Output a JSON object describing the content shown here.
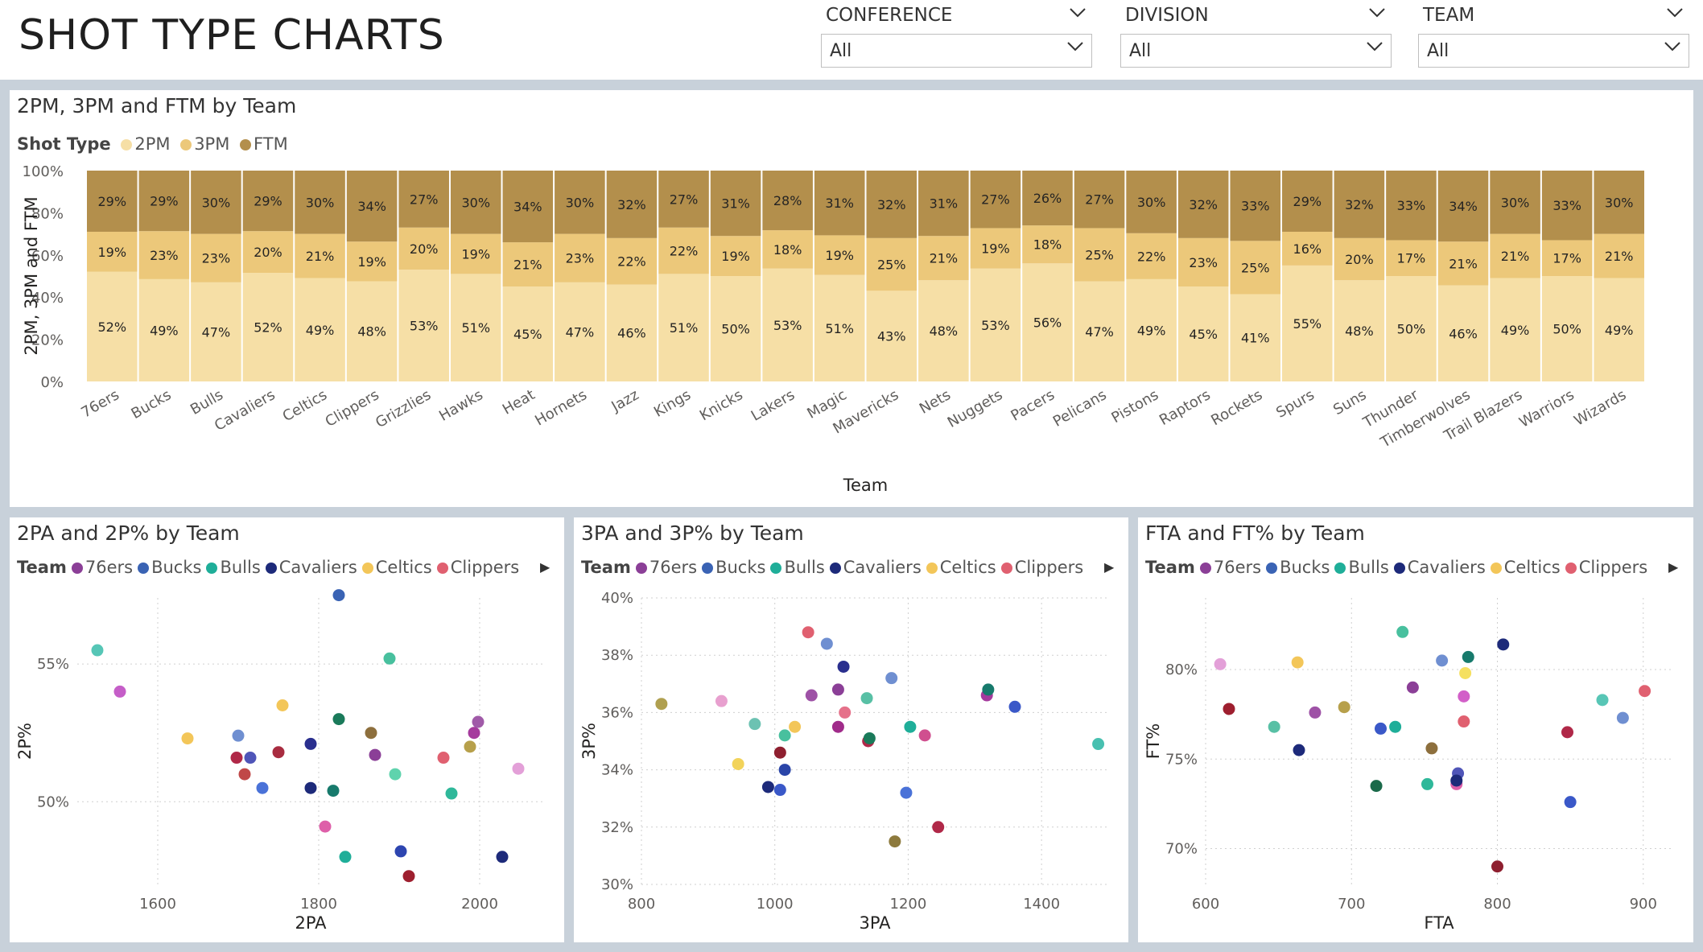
{
  "header": {
    "title": "SHOT TYPE CHARTS"
  },
  "slicers": [
    {
      "label": "CONFERENCE",
      "value": "All"
    },
    {
      "label": "DIVISION",
      "value": "All"
    },
    {
      "label": "TEAM",
      "value": "All"
    }
  ],
  "colors": {
    "p2": "#f6dfa6",
    "p3": "#ecc87a",
    "ftm": "#b38f4c",
    "axis_text": "#605e5c",
    "grid": "#cfcfcf"
  },
  "bar_chart": {
    "title": "2PM, 3PM and FTM by Team",
    "legend_title": "Shot Type",
    "legend_items": [
      "2PM",
      "3PM",
      "FTM"
    ]
  },
  "scatter_legend": {
    "title": "Team",
    "items": [
      {
        "name": "76ers",
        "color": "#8b3f97"
      },
      {
        "name": "Bucks",
        "color": "#3a63b4"
      },
      {
        "name": "Bulls",
        "color": "#1fae99"
      },
      {
        "name": "Cavaliers",
        "color": "#1d2a7a"
      },
      {
        "name": "Celtics",
        "color": "#f3c659"
      },
      {
        "name": "Clippers",
        "color": "#e06070"
      }
    ],
    "more_icon": "right-arrow-icon"
  },
  "chart_data": [
    {
      "type": "bar",
      "stacked": "100%",
      "title": "2PM, 3PM and FTM by Team",
      "xlabel": "Team",
      "ylabel": "2PM, 3PM and FTM",
      "yticks": [
        "0%",
        "20%",
        "40%",
        "60%",
        "80%",
        "100%"
      ],
      "categories": [
        "76ers",
        "Bucks",
        "Bulls",
        "Cavaliers",
        "Celtics",
        "Clippers",
        "Grizzlies",
        "Hawks",
        "Heat",
        "Hornets",
        "Jazz",
        "Kings",
        "Knicks",
        "Lakers",
        "Magic",
        "Mavericks",
        "Nets",
        "Nuggets",
        "Pacers",
        "Pelicans",
        "Pistons",
        "Raptors",
        "Rockets",
        "Spurs",
        "Suns",
        "Thunder",
        "Timberwolves",
        "Trail Blazers",
        "Warriors",
        "Wizards"
      ],
      "series": [
        {
          "name": "2PM",
          "values": [
            52,
            49,
            47,
            52,
            49,
            48,
            53,
            51,
            45,
            47,
            46,
            51,
            50,
            53,
            51,
            43,
            48,
            53,
            56,
            47,
            49,
            45,
            41,
            55,
            48,
            50,
            46,
            49,
            50,
            49
          ]
        },
        {
          "name": "3PM",
          "values": [
            19,
            23,
            23,
            20,
            21,
            19,
            20,
            19,
            21,
            23,
            22,
            22,
            19,
            18,
            19,
            25,
            21,
            19,
            18,
            25,
            22,
            23,
            25,
            16,
            20,
            17,
            21,
            21,
            17,
            21
          ]
        },
        {
          "name": "FTM",
          "values": [
            29,
            29,
            30,
            29,
            30,
            34,
            27,
            30,
            34,
            30,
            32,
            27,
            31,
            28,
            31,
            32,
            31,
            27,
            26,
            27,
            30,
            32,
            33,
            29,
            32,
            33,
            34,
            30,
            33,
            30
          ]
        }
      ],
      "legend": "top-left"
    },
    {
      "type": "scatter",
      "title": "2PA and 2P% by Team",
      "xlabel": "2PA",
      "ylabel": "2P%",
      "xlim": [
        1500,
        2080
      ],
      "ylim": [
        47.0,
        57.4
      ],
      "xticks": [
        "1600",
        "1800",
        "2000"
      ],
      "yticks": [
        "50%",
        "55%"
      ],
      "points": [
        {
          "x": 1525,
          "y": 55.5,
          "c": "#56c6b6"
        },
        {
          "x": 1553,
          "y": 54.0,
          "c": "#c55ec8"
        },
        {
          "x": 1825,
          "y": 57.5,
          "c": "#3a63b4"
        },
        {
          "x": 1637,
          "y": 52.3,
          "c": "#f3c659"
        },
        {
          "x": 1755,
          "y": 53.5,
          "c": "#f3c659"
        },
        {
          "x": 1700,
          "y": 52.4,
          "c": "#6f8fd1"
        },
        {
          "x": 1698,
          "y": 51.6,
          "c": "#b02848"
        },
        {
          "x": 1715,
          "y": 51.6,
          "c": "#4f55b8"
        },
        {
          "x": 1750,
          "y": 51.8,
          "c": "#a82c40"
        },
        {
          "x": 1708,
          "y": 51.0,
          "c": "#c04848"
        },
        {
          "x": 1730,
          "y": 50.5,
          "c": "#4a72d8"
        },
        {
          "x": 1790,
          "y": 52.1,
          "c": "#2a2f8e"
        },
        {
          "x": 1825,
          "y": 53.0,
          "c": "#1a7a5a"
        },
        {
          "x": 1888,
          "y": 55.2,
          "c": "#48c09e"
        },
        {
          "x": 1865,
          "y": 52.5,
          "c": "#8d6f3d"
        },
        {
          "x": 1870,
          "y": 51.7,
          "c": "#8b3f97"
        },
        {
          "x": 1790,
          "y": 50.5,
          "c": "#1d2a7a"
        },
        {
          "x": 1818,
          "y": 50.4,
          "c": "#177a6c"
        },
        {
          "x": 1895,
          "y": 51.0,
          "c": "#5fd3ad"
        },
        {
          "x": 1808,
          "y": 49.1,
          "c": "#de5fa9"
        },
        {
          "x": 1833,
          "y": 48.0,
          "c": "#1fae99"
        },
        {
          "x": 1902,
          "y": 48.2,
          "c": "#2d45b0"
        },
        {
          "x": 1912,
          "y": 47.3,
          "c": "#9e1f2f"
        },
        {
          "x": 1955,
          "y": 51.6,
          "c": "#e06070"
        },
        {
          "x": 1965,
          "y": 50.3,
          "c": "#2fb89a"
        },
        {
          "x": 1988,
          "y": 52.0,
          "c": "#b7a04b"
        },
        {
          "x": 1993,
          "y": 52.5,
          "c": "#a53a9d"
        },
        {
          "x": 1998,
          "y": 52.9,
          "c": "#a05aa8"
        },
        {
          "x": 2028,
          "y": 48.0,
          "c": "#1d2a7a"
        },
        {
          "x": 2048,
          "y": 51.2,
          "c": "#e3a0d8"
        }
      ]
    },
    {
      "type": "scatter",
      "title": "3PA and 3P% by Team",
      "xlabel": "3PA",
      "ylabel": "3P%",
      "xlim": [
        800,
        1500
      ],
      "ylim": [
        30,
        40
      ],
      "xticks": [
        "800",
        "1000",
        "1200",
        "1400"
      ],
      "yticks": [
        "30%",
        "32%",
        "34%",
        "36%",
        "38%",
        "40%"
      ],
      "points": [
        {
          "x": 830,
          "y": 36.3,
          "c": "#b0a050"
        },
        {
          "x": 920,
          "y": 36.4,
          "c": "#e8a0cf"
        },
        {
          "x": 945,
          "y": 34.2,
          "c": "#f2d35a"
        },
        {
          "x": 970,
          "y": 35.6,
          "c": "#6cc2b2"
        },
        {
          "x": 990,
          "y": 33.4,
          "c": "#1d2a7a"
        },
        {
          "x": 1008,
          "y": 33.3,
          "c": "#3a58c8"
        },
        {
          "x": 1008,
          "y": 34.6,
          "c": "#8e1f2f"
        },
        {
          "x": 1015,
          "y": 34.0,
          "c": "#2a45a8"
        },
        {
          "x": 1015,
          "y": 35.2,
          "c": "#48c09e"
        },
        {
          "x": 1030,
          "y": 35.5,
          "c": "#f3c659"
        },
        {
          "x": 1050,
          "y": 38.8,
          "c": "#e06070"
        },
        {
          "x": 1055,
          "y": 36.6,
          "c": "#9e52a6"
        },
        {
          "x": 1078,
          "y": 38.4,
          "c": "#6f8fd1"
        },
        {
          "x": 1095,
          "y": 36.8,
          "c": "#8b3f97"
        },
        {
          "x": 1095,
          "y": 35.5,
          "c": "#a02b8a"
        },
        {
          "x": 1103,
          "y": 37.6,
          "c": "#2a2f8e"
        },
        {
          "x": 1105,
          "y": 36.0,
          "c": "#e5718a"
        },
        {
          "x": 1138,
          "y": 36.5,
          "c": "#58c0a5"
        },
        {
          "x": 1140,
          "y": 35.0,
          "c": "#b02848"
        },
        {
          "x": 1142,
          "y": 35.1,
          "c": "#1a7a5a"
        },
        {
          "x": 1175,
          "y": 37.2,
          "c": "#6f8fd1"
        },
        {
          "x": 1180,
          "y": 31.5,
          "c": "#8d7a3d"
        },
        {
          "x": 1197,
          "y": 33.2,
          "c": "#4a72d8"
        },
        {
          "x": 1203,
          "y": 35.5,
          "c": "#1fae99"
        },
        {
          "x": 1225,
          "y": 35.2,
          "c": "#d04f8f"
        },
        {
          "x": 1245,
          "y": 32.0,
          "c": "#b02848"
        },
        {
          "x": 1318,
          "y": 36.6,
          "c": "#a53a9d"
        },
        {
          "x": 1320,
          "y": 36.8,
          "c": "#177a6c"
        },
        {
          "x": 1360,
          "y": 36.2,
          "c": "#3a58c8"
        },
        {
          "x": 1485,
          "y": 34.9,
          "c": "#48c0b0"
        }
      ]
    },
    {
      "type": "scatter",
      "title": "FTA and FT% by Team",
      "xlabel": "FTA",
      "ylabel": "FT%",
      "xlim": [
        600,
        920
      ],
      "ylim": [
        68,
        84
      ],
      "xticks": [
        "600",
        "700",
        "800",
        "900"
      ],
      "yticks": [
        "70%",
        "75%",
        "80%"
      ],
      "points": [
        {
          "x": 610,
          "y": 80.3,
          "c": "#e3a0d8"
        },
        {
          "x": 616,
          "y": 77.8,
          "c": "#9e1f2f"
        },
        {
          "x": 647,
          "y": 76.8,
          "c": "#58c0a5"
        },
        {
          "x": 663,
          "y": 80.4,
          "c": "#f3c659"
        },
        {
          "x": 664,
          "y": 75.5,
          "c": "#1d2a7a"
        },
        {
          "x": 675,
          "y": 77.6,
          "c": "#9e52a6"
        },
        {
          "x": 695,
          "y": 77.9,
          "c": "#b7a04b"
        },
        {
          "x": 717,
          "y": 73.5,
          "c": "#1a6a4a"
        },
        {
          "x": 720,
          "y": 76.7,
          "c": "#3a58c8"
        },
        {
          "x": 730,
          "y": 76.8,
          "c": "#1fae99"
        },
        {
          "x": 735,
          "y": 82.1,
          "c": "#48c09e"
        },
        {
          "x": 742,
          "y": 79.0,
          "c": "#8b3f97"
        },
        {
          "x": 752,
          "y": 73.6,
          "c": "#2fb89a"
        },
        {
          "x": 755,
          "y": 75.6,
          "c": "#8d6f3d"
        },
        {
          "x": 762,
          "y": 80.5,
          "c": "#6f8fd1"
        },
        {
          "x": 772,
          "y": 73.6,
          "c": "#de5fa9"
        },
        {
          "x": 773,
          "y": 74.2,
          "c": "#4f55b8"
        },
        {
          "x": 772,
          "y": 73.8,
          "c": "#1d2a7a"
        },
        {
          "x": 777,
          "y": 78.5,
          "c": "#d25fc8"
        },
        {
          "x": 777,
          "y": 77.1,
          "c": "#e06070"
        },
        {
          "x": 778,
          "y": 79.8,
          "c": "#f5e060"
        },
        {
          "x": 780,
          "y": 80.7,
          "c": "#177a6c"
        },
        {
          "x": 800,
          "y": 69.0,
          "c": "#8e1f2f"
        },
        {
          "x": 804,
          "y": 81.4,
          "c": "#1d2a7a"
        },
        {
          "x": 848,
          "y": 76.5,
          "c": "#b02848"
        },
        {
          "x": 850,
          "y": 72.6,
          "c": "#3a58c8"
        },
        {
          "x": 872,
          "y": 78.3,
          "c": "#58c6b6"
        },
        {
          "x": 886,
          "y": 77.3,
          "c": "#6f8fd1"
        },
        {
          "x": 901,
          "y": 78.8,
          "c": "#e06070"
        }
      ]
    }
  ]
}
